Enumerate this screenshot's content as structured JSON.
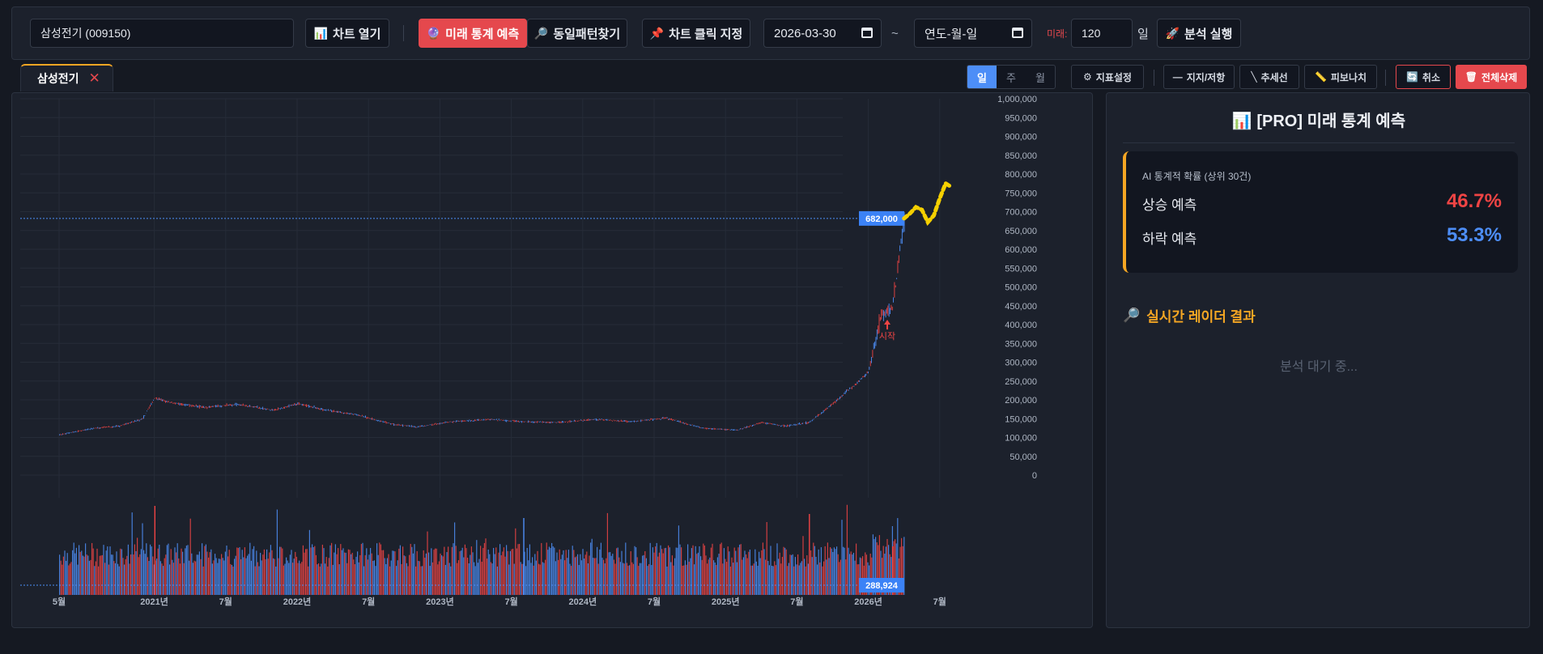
{
  "toolbar": {
    "stock_input_value": "삼성전기 (009150)",
    "open_chart_label": "차트 열기",
    "open_chart_icon": "bar-chart-icon",
    "future_predict_label": "미래 통계 예측",
    "future_predict_icon": "fortune-teller-icon",
    "pattern_search_label": "동일패턴찾기",
    "pattern_search_icon": "magnifier-icon",
    "chart_click_label": "차트 클릭 지정",
    "chart_click_icon": "pushpin-icon",
    "start_date": "2026-03-30",
    "range_sep": "~",
    "end_date_placeholder": "연도-월-일",
    "future_label": "미래:",
    "future_days": "120",
    "days_unit": "일",
    "run_label": "분석 실행",
    "run_icon": "rocket-icon"
  },
  "tabs": [
    {
      "label": "삼성전기",
      "close": "✕"
    }
  ],
  "period": {
    "options": [
      "일",
      "주",
      "월"
    ],
    "selected": "일"
  },
  "chart_tools": {
    "indicator_settings": "지표설정",
    "support_resistance": "지지/저항",
    "trendline": "추세선",
    "fibonacci": "피보나치",
    "undo": "취소",
    "delete_all": "전체삭제"
  },
  "chart_data": {
    "type": "candlestick",
    "y_ticks": [
      "1,000,000",
      "950,000",
      "900,000",
      "850,000",
      "800,000",
      "750,000",
      "700,000",
      "650,000",
      "600,000",
      "550,000",
      "500,000",
      "450,000",
      "400,000",
      "350,000",
      "300,000",
      "250,000",
      "200,000",
      "150,000",
      "100,000",
      "50,000",
      "0"
    ],
    "x_ticks": [
      "5월",
      "2021년",
      "7월",
      "2022년",
      "7월",
      "2023년",
      "7월",
      "2024년",
      "7월",
      "2025년",
      "7월",
      "2026년",
      "7월"
    ],
    "last_price_label": "682,000",
    "last_price": 682000,
    "volume_label": "288,924",
    "start_marker_label": "시작",
    "colors": {
      "up": "#ef4444",
      "down": "#4d8ef7",
      "forecast": "#f5d000",
      "price_tag": "#3b82f6"
    },
    "price_path": [
      [
        "2020-05",
        107000
      ],
      [
        "2020-08",
        125000
      ],
      [
        "2020-10",
        130000
      ],
      [
        "2020-12",
        150000
      ],
      [
        "2021-01",
        205000
      ],
      [
        "2021-02",
        195000
      ],
      [
        "2021-05",
        180000
      ],
      [
        "2021-08",
        188000
      ],
      [
        "2021-11",
        172000
      ],
      [
        "2022-01",
        190000
      ],
      [
        "2022-03",
        175000
      ],
      [
        "2022-06",
        160000
      ],
      [
        "2022-09",
        135000
      ],
      [
        "2022-11",
        128000
      ],
      [
        "2023-02",
        142000
      ],
      [
        "2023-05",
        148000
      ],
      [
        "2023-08",
        142000
      ],
      [
        "2023-11",
        140000
      ],
      [
        "2024-02",
        148000
      ],
      [
        "2024-05",
        142000
      ],
      [
        "2024-08",
        152000
      ],
      [
        "2024-11",
        125000
      ],
      [
        "2025-02",
        120000
      ],
      [
        "2025-04",
        140000
      ],
      [
        "2025-06",
        130000
      ],
      [
        "2025-08",
        140000
      ],
      [
        "2025-10",
        190000
      ],
      [
        "2025-12",
        245000
      ],
      [
        "2026-01",
        275000
      ],
      [
        "2026-02",
        420000
      ],
      [
        "2026-03",
        450000
      ],
      [
        "2026-04",
        682000
      ]
    ],
    "forecast_path": [
      [
        "2026-04",
        682000
      ],
      [
        "2026-04-15",
        695000
      ],
      [
        "2026-05",
        712000
      ],
      [
        "2026-05-15",
        705000
      ],
      [
        "2026-06",
        672000
      ],
      [
        "2026-06-15",
        690000
      ],
      [
        "2026-07",
        735000
      ],
      [
        "2026-07-15",
        775000
      ],
      [
        "2026-08",
        765000
      ]
    ]
  },
  "side_panel": {
    "title": "[PRO] 미래 통계 예측",
    "title_icon": "chart-icon",
    "caption": "AI 통계적 확률 (상위 30건)",
    "up_label": "상승 예측",
    "up_value": "46.7%",
    "down_label": "하락 예측",
    "down_value": "53.3%",
    "radar_title": "실시간 레이더 결과",
    "radar_icon": "magnifier-icon",
    "radar_status": "분석 대기 중..."
  }
}
